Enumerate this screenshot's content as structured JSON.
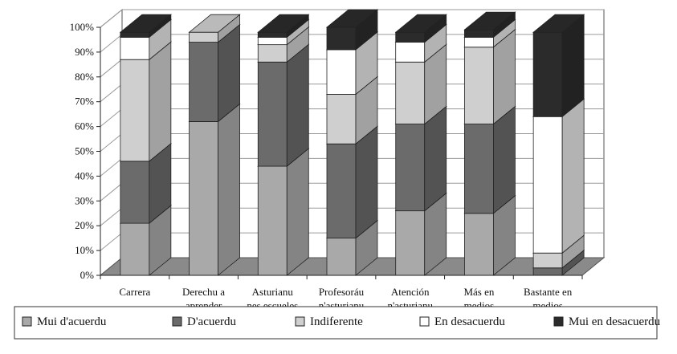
{
  "colors": {
    "series": [
      "#a9a9a9",
      "#6b6b6b",
      "#cfcfcf",
      "#ffffff",
      "#2b2b2b"
    ],
    "floor": "#8a8a8a",
    "grid": "#9a9a9a",
    "frame": "#555555"
  },
  "chart_data": {
    "type": "bar",
    "stacked": true,
    "percent": true,
    "three_d": true,
    "categories": [
      [
        "Carrera"
      ],
      [
        "Derechu a",
        "aprender"
      ],
      [
        "Asturianu",
        "nes escueles"
      ],
      [
        "Profesoráu",
        "n'asturianu"
      ],
      [
        "Atención",
        "n'asturianu"
      ],
      [
        "Más en",
        "medios"
      ],
      [
        "Bastante en",
        "medios"
      ]
    ],
    "series": [
      {
        "name": "Mui d'acuerdu",
        "values": [
          21,
          62,
          44,
          15,
          26,
          25,
          0
        ]
      },
      {
        "name": "D'acuerdu",
        "values": [
          25,
          32,
          42,
          38,
          35,
          36,
          3
        ]
      },
      {
        "name": "Indiferente",
        "values": [
          41,
          4,
          7,
          20,
          25,
          31,
          6
        ]
      },
      {
        "name": "En desacuerdu",
        "values": [
          9,
          0,
          3,
          18,
          8,
          4,
          55
        ]
      },
      {
        "name": "Mui en desacuerdu",
        "values": [
          2,
          0,
          2,
          9,
          4,
          3,
          34
        ]
      }
    ],
    "y_ticks": [
      "0%",
      "10%",
      "20%",
      "30%",
      "40%",
      "50%",
      "60%",
      "70%",
      "80%",
      "90%",
      "100%"
    ],
    "ylim": [
      0,
      100
    ],
    "grid": true,
    "legend_position": "bottom"
  }
}
